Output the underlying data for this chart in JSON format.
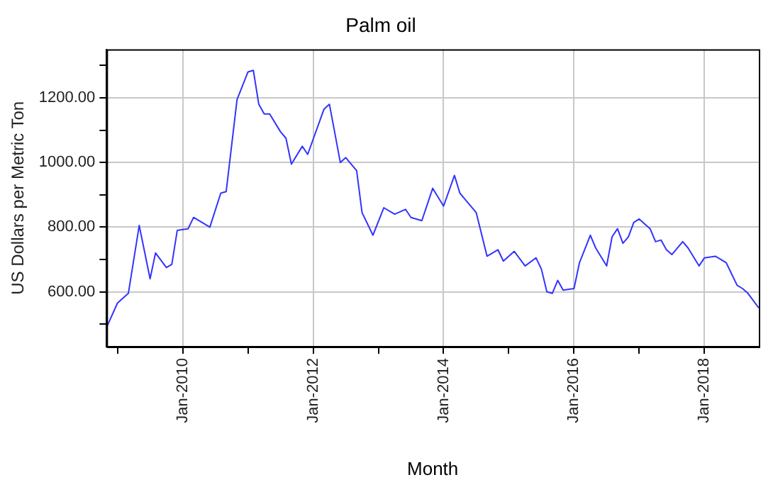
{
  "chart_data": {
    "type": "line",
    "title": "Palm oil",
    "xlabel": "Month",
    "ylabel": "US Dollars per Metric Ton",
    "xlim": [
      "2008-11",
      "2018-11"
    ],
    "ylim": [
      430,
      1350
    ],
    "xticks": [
      {
        "value": "2009-01",
        "label": null
      },
      {
        "value": "2010-01",
        "label": "Jan-2010"
      },
      {
        "value": "2011-01",
        "label": null
      },
      {
        "value": "2012-01",
        "label": "Jan-2012"
      },
      {
        "value": "2013-01",
        "label": null
      },
      {
        "value": "2014-01",
        "label": "Jan-2014"
      },
      {
        "value": "2015-01",
        "label": null
      },
      {
        "value": "2016-01",
        "label": "Jan-2016"
      },
      {
        "value": "2017-01",
        "label": null
      },
      {
        "value": "2018-01",
        "label": "Jan-2018"
      }
    ],
    "yticks": [
      {
        "value": 500,
        "label": null
      },
      {
        "value": 600,
        "label": "600.00"
      },
      {
        "value": 700,
        "label": null
      },
      {
        "value": 800,
        "label": "800.00"
      },
      {
        "value": 900,
        "label": null
      },
      {
        "value": 1000,
        "label": "1000.00"
      },
      {
        "value": 1100,
        "label": null
      },
      {
        "value": 1200,
        "label": "1200.00"
      },
      {
        "value": 1300,
        "label": null
      }
    ],
    "grid": true,
    "legend": false,
    "marker": "none",
    "line_style": "solid",
    "series": [
      {
        "color": "#3333ff",
        "x": [
          "2008-11",
          "2009-01",
          "2009-03",
          "2009-05",
          "2009-07",
          "2009-08",
          "2009-10",
          "2009-11",
          "2009-12",
          "2010-02",
          "2010-03",
          "2010-06",
          "2010-08",
          "2010-09",
          "2010-11",
          "2011-01",
          "2011-02",
          "2011-03",
          "2011-04",
          "2011-05",
          "2011-07",
          "2011-08",
          "2011-09",
          "2011-11",
          "2011-12",
          "2012-03",
          "2012-04",
          "2012-06",
          "2012-07",
          "2012-09",
          "2012-10",
          "2012-12",
          "2013-02",
          "2013-04",
          "2013-06",
          "2013-07",
          "2013-09",
          "2013-11",
          "2014-01",
          "2014-03",
          "2014-04",
          "2014-05",
          "2014-07",
          "2014-09",
          "2014-11",
          "2014-12",
          "2015-02",
          "2015-04",
          "2015-06",
          "2015-07",
          "2015-08",
          "2015-09",
          "2015-10",
          "2015-11",
          "2016-01",
          "2016-02",
          "2016-04",
          "2016-05",
          "2016-07",
          "2016-08",
          "2016-09",
          "2016-10",
          "2016-11",
          "2016-12",
          "2017-01",
          "2017-03",
          "2017-04",
          "2017-05",
          "2017-06",
          "2017-07",
          "2017-09",
          "2017-10",
          "2017-12",
          "2018-01",
          "2018-03",
          "2018-05",
          "2018-07",
          "2018-08",
          "2018-09",
          "2018-11"
        ],
        "values": [
          490,
          565,
          595,
          805,
          640,
          720,
          675,
          685,
          790,
          795,
          830,
          800,
          905,
          910,
          1195,
          1280,
          1285,
          1180,
          1150,
          1150,
          1095,
          1075,
          995,
          1050,
          1025,
          1165,
          1180,
          1000,
          1015,
          975,
          845,
          775,
          860,
          840,
          855,
          830,
          820,
          920,
          865,
          960,
          905,
          885,
          845,
          710,
          730,
          695,
          725,
          680,
          705,
          670,
          600,
          595,
          635,
          605,
          610,
          690,
          775,
          735,
          680,
          770,
          795,
          750,
          770,
          815,
          825,
          795,
          755,
          760,
          730,
          715,
          755,
          735,
          680,
          705,
          710,
          690,
          620,
          610,
          595,
          550
        ]
      }
    ]
  }
}
